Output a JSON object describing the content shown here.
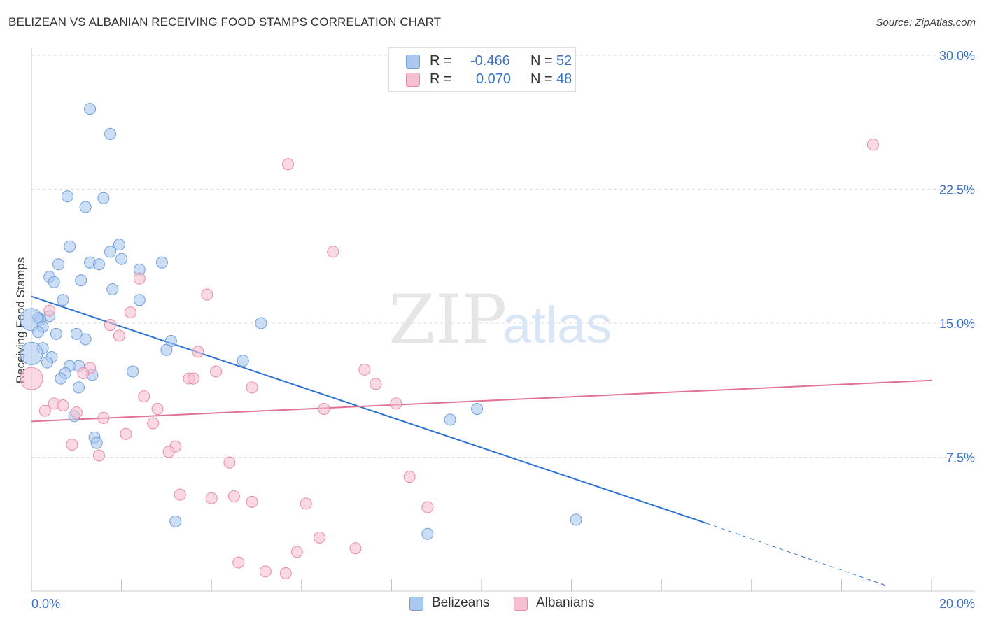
{
  "title": "BELIZEAN VS ALBANIAN RECEIVING FOOD STAMPS CORRELATION CHART",
  "source": "Source: ZipAtlas.com",
  "watermark": {
    "zip": "ZIP",
    "atlas": "atlas"
  },
  "stats": {
    "row1": {
      "r_label": "R =",
      "r_value": "-0.466",
      "n_label": "N =",
      "n_value": "52"
    },
    "row2": {
      "r_label": "R =",
      "r_value": "0.070",
      "n_label": "N =",
      "n_value": "48"
    }
  },
  "legend": {
    "series1": "Belizeans",
    "series2": "Albanians"
  },
  "colors": {
    "blue_fill": "#aac8f0",
    "blue_stroke": "#6f9fdc",
    "blue_line": "#2f72d4",
    "pink_fill": "#f7c0d0",
    "pink_stroke": "#e98aa9",
    "pink_line": "#e0709a",
    "axis_text": "#3a72c6",
    "grid": "#dddddd"
  },
  "chart_data": {
    "type": "scatter",
    "title": "BELIZEAN VS ALBANIAN RECEIVING FOOD STAMPS CORRELATION CHART",
    "xlabel": "",
    "ylabel": "Receiving Food Stamps",
    "xlim": [
      0,
      20
    ],
    "ylim": [
      0,
      30
    ],
    "x_tick_labels": [
      "0.0%",
      "20.0%"
    ],
    "y_ticks": [
      7.5,
      15.0,
      22.5,
      30.0
    ],
    "y_tick_labels": [
      "7.5%",
      "15.0%",
      "22.5%",
      "30.0%"
    ],
    "grid": "horizontal dashed",
    "legend_position": "bottom-center",
    "series": [
      {
        "name": "Belizeans",
        "color": "#6f9fdc",
        "points": [
          [
            1.3,
            27.0
          ],
          [
            1.75,
            25.6
          ],
          [
            0.8,
            22.1
          ],
          [
            1.6,
            22.0
          ],
          [
            1.2,
            21.5
          ],
          [
            1.95,
            19.4
          ],
          [
            0.85,
            19.3
          ],
          [
            1.75,
            19.0
          ],
          [
            0.6,
            18.3
          ],
          [
            1.3,
            18.4
          ],
          [
            1.5,
            18.3
          ],
          [
            2.0,
            18.6
          ],
          [
            2.4,
            18.0
          ],
          [
            2.9,
            18.4
          ],
          [
            0.4,
            17.6
          ],
          [
            1.1,
            17.4
          ],
          [
            0.5,
            17.3
          ],
          [
            1.8,
            16.9
          ],
          [
            0.7,
            16.3
          ],
          [
            2.4,
            16.3
          ],
          [
            0.4,
            15.4
          ],
          [
            0.15,
            15.3
          ],
          [
            0.2,
            15.2
          ],
          [
            0.0,
            15.2
          ],
          [
            5.1,
            15.0
          ],
          [
            0.25,
            14.8
          ],
          [
            0.15,
            14.5
          ],
          [
            0.55,
            14.4
          ],
          [
            1.0,
            14.4
          ],
          [
            1.2,
            14.1
          ],
          [
            3.1,
            14.0
          ],
          [
            3.0,
            13.5
          ],
          [
            0.25,
            13.6
          ],
          [
            0.0,
            13.3
          ],
          [
            0.45,
            13.1
          ],
          [
            4.7,
            12.9
          ],
          [
            0.35,
            12.8
          ],
          [
            0.85,
            12.6
          ],
          [
            1.05,
            12.6
          ],
          [
            0.75,
            12.2
          ],
          [
            2.25,
            12.3
          ],
          [
            1.35,
            12.1
          ],
          [
            0.65,
            11.9
          ],
          [
            1.05,
            11.4
          ],
          [
            9.9,
            10.2
          ],
          [
            0.95,
            9.8
          ],
          [
            9.3,
            9.6
          ],
          [
            1.4,
            8.6
          ],
          [
            1.45,
            8.3
          ],
          [
            3.2,
            3.9
          ],
          [
            12.1,
            4.0
          ],
          [
            8.8,
            3.2
          ]
        ]
      },
      {
        "name": "Albanians",
        "color": "#e98aa9",
        "points": [
          [
            18.7,
            25.0
          ],
          [
            5.7,
            23.9
          ],
          [
            6.7,
            19.0
          ],
          [
            2.4,
            17.5
          ],
          [
            3.9,
            16.6
          ],
          [
            0.4,
            15.7
          ],
          [
            2.2,
            15.6
          ],
          [
            1.75,
            14.9
          ],
          [
            1.95,
            14.3
          ],
          [
            3.7,
            13.4
          ],
          [
            1.3,
            12.5
          ],
          [
            7.4,
            12.4
          ],
          [
            4.1,
            12.3
          ],
          [
            1.15,
            12.2
          ],
          [
            3.5,
            11.9
          ],
          [
            3.6,
            11.9
          ],
          [
            7.65,
            11.6
          ],
          [
            4.9,
            11.4
          ],
          [
            0.0,
            11.9
          ],
          [
            2.5,
            10.9
          ],
          [
            0.5,
            10.5
          ],
          [
            0.7,
            10.4
          ],
          [
            8.1,
            10.5
          ],
          [
            6.5,
            10.2
          ],
          [
            2.8,
            10.2
          ],
          [
            0.3,
            10.1
          ],
          [
            1.0,
            10.0
          ],
          [
            1.6,
            9.7
          ],
          [
            2.7,
            9.4
          ],
          [
            2.1,
            8.8
          ],
          [
            0.9,
            8.2
          ],
          [
            3.2,
            8.1
          ],
          [
            3.05,
            7.8
          ],
          [
            1.5,
            7.6
          ],
          [
            4.4,
            7.2
          ],
          [
            8.4,
            6.4
          ],
          [
            3.3,
            5.4
          ],
          [
            4.0,
            5.2
          ],
          [
            4.5,
            5.3
          ],
          [
            4.9,
            5.0
          ],
          [
            6.1,
            4.9
          ],
          [
            8.8,
            4.7
          ],
          [
            6.4,
            3.0
          ],
          [
            7.2,
            2.4
          ],
          [
            5.9,
            2.2
          ],
          [
            4.6,
            1.6
          ],
          [
            5.2,
            1.1
          ],
          [
            5.65,
            1.0
          ]
        ]
      }
    ],
    "trendlines": [
      {
        "series": "Belizeans",
        "x": [
          0,
          15.0
        ],
        "y": [
          16.5,
          3.8
        ],
        "dashed_extension_to": [
          19.0,
          0.3
        ]
      },
      {
        "series": "Albanians",
        "x": [
          0,
          20.0
        ],
        "y": [
          9.5,
          11.8
        ]
      }
    ]
  }
}
